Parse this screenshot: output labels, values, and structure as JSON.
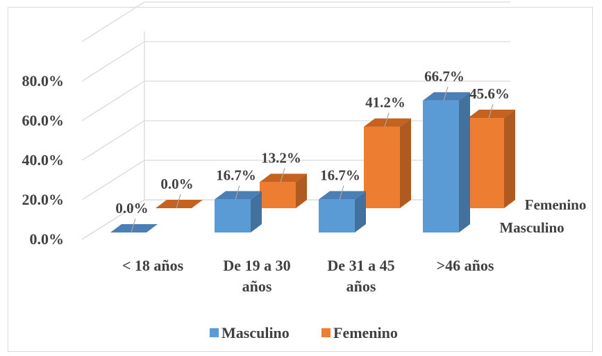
{
  "chart_data": {
    "type": "bar",
    "style": "3d-column",
    "categories": [
      [
        "< 18 años"
      ],
      [
        "De 19 a 30",
        "años"
      ],
      [
        "De 31 a 45",
        "años"
      ],
      [
        ">46 años"
      ]
    ],
    "series": [
      {
        "name": "Masculino",
        "values": [
          0.0,
          16.7,
          16.7,
          66.7
        ],
        "labels": [
          "0.0%",
          "16.7%",
          "16.7%",
          "66.7%"
        ],
        "color": "#5b9bd5"
      },
      {
        "name": "Femenino",
        "values": [
          0.0,
          13.2,
          41.2,
          45.6
        ],
        "labels": [
          "0.0%",
          "13.2%",
          "41.2%",
          "45.6%"
        ],
        "color": "#ed7d31"
      }
    ],
    "y_ticks": [
      "0.0%",
      "20.0%",
      "40.0%",
      "60.0%",
      "80.0%"
    ],
    "ylim": [
      0,
      100
    ],
    "grid": true,
    "legend": "bottom",
    "depth_axis_labels": [
      "Femenino",
      "Masculino"
    ]
  },
  "colors": {
    "masculino_side": "#41719c",
    "masculino_top": "#4a7fb5",
    "femenino_side": "#ae5a21",
    "femenino_top": "#c5621f",
    "grid": "#d9d9d9",
    "leader": "#a6a6a6"
  }
}
